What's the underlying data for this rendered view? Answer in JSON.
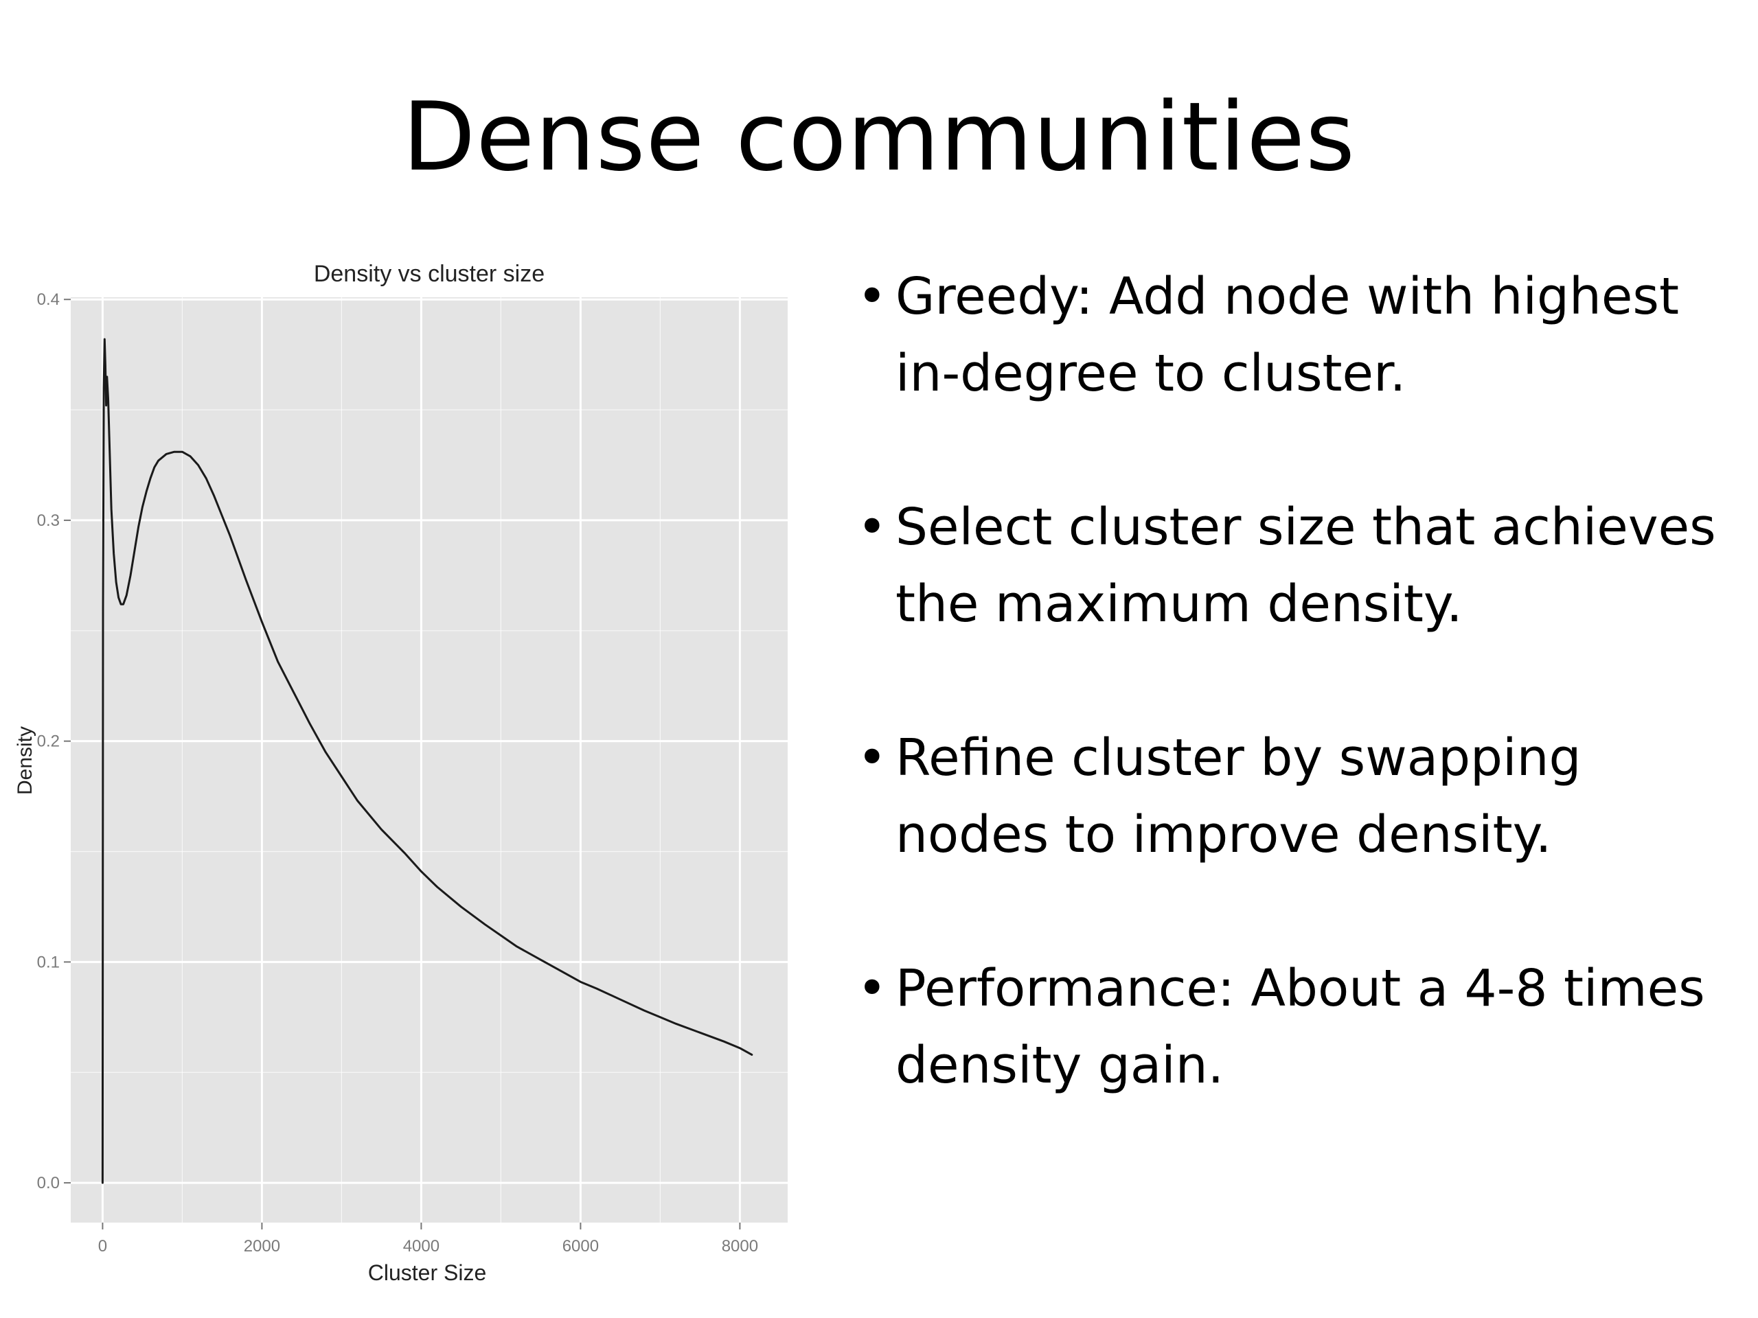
{
  "slide": {
    "title": "Dense communities",
    "bullets": [
      "Greedy: Add node with highest in-degree to cluster.",
      "Select cluster size that achieves the maximum density.",
      "Refine cluster by swapping nodes to improve density.",
      "Performance: About a 4-8 times density gain."
    ],
    "bullet_symbol": "•"
  },
  "chart_data": {
    "type": "line",
    "title": "Density vs cluster size",
    "xlabel": "Cluster Size",
    "ylabel": "Density",
    "xlim": [
      -400,
      8600
    ],
    "ylim": [
      -0.018,
      0.401
    ],
    "xticks": [
      0,
      2000,
      4000,
      6000,
      8000
    ],
    "xtick_labels": [
      "0",
      "2000",
      "4000",
      "6000",
      "8000"
    ],
    "yticks": [
      0.0,
      0.1,
      0.2,
      0.3,
      0.4
    ],
    "ytick_labels": [
      "0.0",
      "0.1",
      "0.2",
      "0.3",
      "0.4"
    ],
    "grid": true,
    "panel_color": "#e4e4e4",
    "grid_color": "#ffffff",
    "line_color": "#1a1a1a",
    "series": [
      {
        "x": [
          0,
          5,
          15,
          25,
          35,
          45,
          55,
          70,
          90,
          110,
          140,
          170,
          200,
          230,
          260,
          300,
          350,
          400,
          450,
          500,
          550,
          600,
          650,
          700,
          800,
          900,
          1000,
          1100,
          1200,
          1300,
          1400,
          1500,
          1600,
          1800,
          2000,
          2200,
          2400,
          2600,
          2800,
          3000,
          3200,
          3500,
          3800,
          4000,
          4200,
          4500,
          4800,
          5000,
          5200,
          5500,
          5800,
          6000,
          6200,
          6500,
          6800,
          7000,
          7200,
          7500,
          7800,
          8000,
          8150
        ],
        "y": [
          0.0,
          0.26,
          0.36,
          0.382,
          0.37,
          0.352,
          0.365,
          0.355,
          0.33,
          0.305,
          0.285,
          0.272,
          0.265,
          0.262,
          0.262,
          0.266,
          0.275,
          0.286,
          0.297,
          0.306,
          0.313,
          0.319,
          0.324,
          0.327,
          0.33,
          0.331,
          0.331,
          0.329,
          0.325,
          0.319,
          0.311,
          0.302,
          0.293,
          0.273,
          0.254,
          0.236,
          0.222,
          0.208,
          0.195,
          0.184,
          0.173,
          0.16,
          0.149,
          0.141,
          0.134,
          0.125,
          0.117,
          0.112,
          0.107,
          0.101,
          0.095,
          0.091,
          0.088,
          0.083,
          0.078,
          0.075,
          0.072,
          0.068,
          0.064,
          0.061,
          0.058
        ]
      }
    ]
  }
}
